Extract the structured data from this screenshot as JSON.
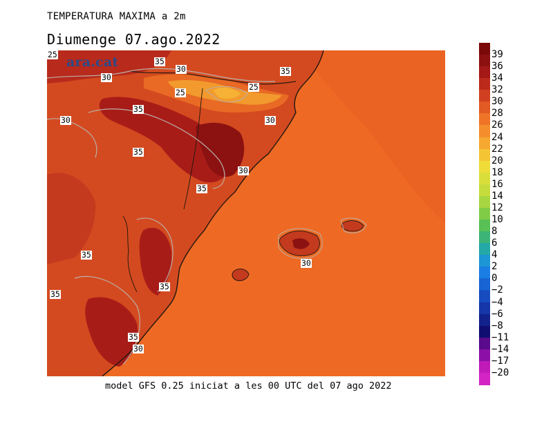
{
  "header": {
    "title": "TEMPERATURA MAXIMA a 2m",
    "date": "Diumenge  07.ago.2022"
  },
  "footer": {
    "caption": "model GFS 0.25 iniciat a les 00 UTC del 07 ago 2022"
  },
  "logo": {
    "text": "ara.cat"
  },
  "map": {
    "contour_labels": [
      "25",
      "35",
      "30",
      "30",
      "35",
      "25",
      "25",
      "35",
      "30",
      "30",
      "35",
      "30",
      "35",
      "30",
      "35",
      "35",
      "35",
      "35",
      "30"
    ],
    "colors": {
      "sea": "#ee6a24",
      "land_warm": "#d44a20",
      "land_hot": "#a81c18",
      "land_very_hot": "#8c1212",
      "cool_valley": "#f29a2e",
      "coast": "#2a1a10",
      "contour": "#b9b0a8"
    }
  },
  "legend": {
    "labels": [
      "39",
      "36",
      "34",
      "32",
      "30",
      "28",
      "26",
      "24",
      "22",
      "20",
      "18",
      "16",
      "14",
      "12",
      "10",
      "8",
      "6",
      "4",
      "2",
      "0",
      "−2",
      "−4",
      "−6",
      "−8",
      "−11",
      "−14",
      "−17",
      "−20"
    ],
    "colors": [
      "#7a0808",
      "#8c1010",
      "#a41818",
      "#bc2a1c",
      "#d04020",
      "#e25a24",
      "#ef7428",
      "#f48e2c",
      "#f6a830",
      "#f4c434",
      "#efdc38",
      "#dade3a",
      "#c6dc3c",
      "#a8d640",
      "#80cc46",
      "#58c054",
      "#3cb478",
      "#24a8a8",
      "#1c96d4",
      "#1a7ee4",
      "#1864d4",
      "#164cc0",
      "#1436a8",
      "#12228c",
      "#100e70",
      "#5a0a8c",
      "#8c10a8",
      "#c01ab8",
      "#d424c4"
    ]
  }
}
